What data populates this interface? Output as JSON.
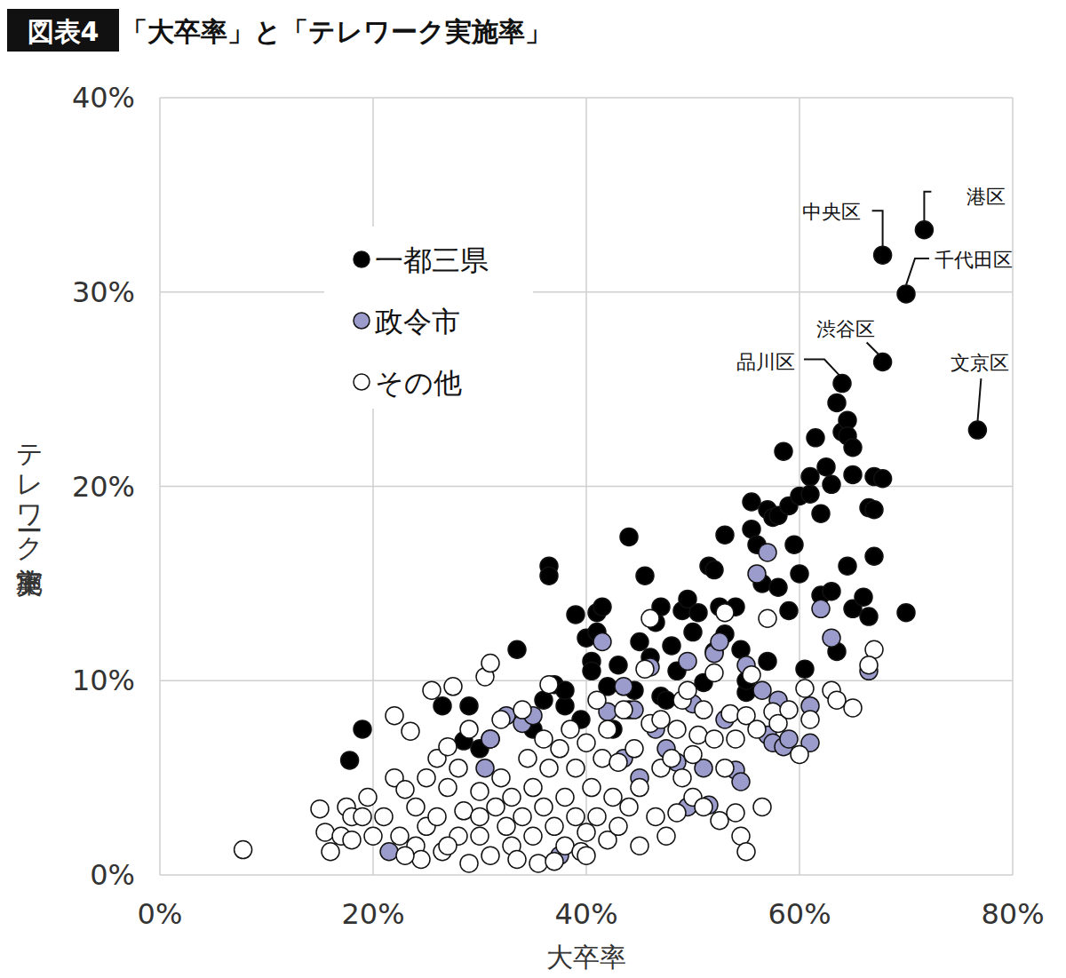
{
  "chart_data": {
    "type": "scatter",
    "figure_label": "図表4",
    "title": "「大卒率」と「テレワーク実施率」",
    "x_label": "大卒率",
    "y_label": "テレワーク実施率",
    "xlim": [
      0,
      80
    ],
    "ylim": [
      0,
      40
    ],
    "xticks": [
      {
        "value": 0,
        "label": "0%"
      },
      {
        "value": 20,
        "label": "20%"
      },
      {
        "value": 40,
        "label": "40%"
      },
      {
        "value": 60,
        "label": "60%"
      },
      {
        "value": 80,
        "label": "80%"
      }
    ],
    "yticks": [
      {
        "value": 0,
        "label": "0%"
      },
      {
        "value": 10,
        "label": "10%"
      },
      {
        "value": 20,
        "label": "20%"
      },
      {
        "value": 30,
        "label": "30%"
      },
      {
        "value": 40,
        "label": "40%"
      }
    ],
    "grid": true,
    "legend": "upper left",
    "marker": "circle",
    "series": [
      {
        "name": "一都三県",
        "color": "#000000",
        "x": [
          17.8,
          19.0,
          26.5,
          28.5,
          29,
          33.5,
          36.5,
          36.5,
          36,
          37,
          38,
          39,
          40,
          40.5,
          41,
          41.5,
          41,
          40.5,
          42,
          43,
          44,
          44.5,
          45,
          45.5,
          46,
          46.5,
          47,
          47,
          48,
          48.5,
          49,
          49.5,
          50,
          50.5,
          51,
          51.5,
          52,
          52.5,
          53,
          53,
          54,
          54.5,
          55,
          55.5,
          55.5,
          56,
          56.5,
          57,
          57.5,
          58,
          58.5,
          58,
          59,
          59,
          59.5,
          60,
          60,
          60.5,
          61,
          61,
          61.5,
          62,
          62,
          62.5,
          63,
          63,
          63.5,
          64,
          64,
          64.5,
          64.5,
          65,
          65,
          64.5,
          65,
          66,
          66.5,
          66.5,
          67,
          67,
          67,
          67.8,
          67.8,
          67.8,
          70,
          71.7,
          76.7,
          70,
          63.5,
          57,
          55,
          52,
          47.5,
          44,
          42.5,
          39.5,
          38,
          35,
          31,
          30
        ],
        "values": [
          5.9,
          7.5,
          8.7,
          6.9,
          8.7,
          11.6,
          15.9,
          15.4,
          9,
          9.8,
          8.7,
          13.4,
          12.2,
          11.0,
          13.5,
          13.8,
          12.5,
          10.5,
          9.7,
          10.8,
          17.4,
          9.5,
          12.0,
          15.4,
          11.2,
          13.0,
          13.8,
          9.2,
          11.8,
          10.5,
          13.6,
          14.2,
          12.5,
          13.5,
          9.9,
          15.9,
          15.7,
          13.8,
          17.5,
          12.4,
          13.8,
          11.6,
          9.4,
          19.2,
          17.8,
          17.0,
          15.0,
          18.8,
          18.4,
          14.8,
          21.8,
          18.5,
          19.0,
          13.6,
          17.0,
          19.5,
          15.5,
          10.6,
          20.5,
          19.6,
          22.5,
          14.4,
          18.6,
          21.0,
          20.1,
          14.6,
          24.3,
          22.8,
          25.3,
          23.4,
          22.6,
          22.0,
          20.6,
          15.9,
          13.7,
          14.3,
          13.3,
          18.9,
          18.8,
          16.4,
          20.5,
          20.4,
          26.4,
          31.9,
          29.9,
          33.2,
          22.9,
          13.5,
          11.5,
          11.0,
          10.0,
          11.5,
          9.0,
          8.5,
          7.5,
          8.0,
          9.5,
          7.5,
          7.0,
          6.5
        ]
      },
      {
        "name": "政令市",
        "color": "#9b9bcc",
        "x": [
          21.5,
          37.5,
          30.5,
          31,
          32.5,
          34,
          35,
          41.5,
          42,
          43.5,
          44.5,
          45,
          46,
          46.5,
          47.5,
          48.5,
          49.5,
          49.5,
          50,
          51,
          52,
          52.5,
          53,
          54,
          54.5,
          55,
          56,
          56.5,
          57,
          57,
          57.5,
          58,
          58.5,
          59,
          61,
          61,
          62,
          63,
          66.5,
          51.5,
          43.5
        ],
        "values": [
          1.2,
          1.0,
          5.5,
          7.0,
          8.2,
          7.8,
          8.2,
          12.0,
          8.4,
          9.7,
          8.5,
          5.0,
          10.7,
          7.5,
          6.5,
          5.8,
          11.0,
          3.5,
          8.8,
          5.5,
          11.4,
          12.0,
          8.0,
          5.4,
          4.8,
          10.8,
          15.5,
          9.5,
          16.6,
          7.2,
          6.8,
          9.0,
          6.6,
          7.0,
          8.7,
          6.8,
          13.7,
          12.2,
          10.5,
          3.6,
          6.0
        ]
      },
      {
        "name": "その他",
        "color": "#ffffff",
        "x": [
          7.8,
          15,
          15.5,
          16,
          17,
          17.5,
          18,
          18,
          19,
          19.5,
          20,
          21,
          22,
          22,
          22.5,
          23,
          23.5,
          24,
          24,
          25,
          25,
          25.5,
          26,
          26,
          26.5,
          27,
          27,
          27.5,
          28,
          28,
          28.5,
          29,
          29,
          30,
          30,
          30.5,
          31,
          31,
          31.5,
          32,
          32,
          32.5,
          33,
          33,
          34,
          34,
          34.5,
          35,
          35,
          35.5,
          36,
          36,
          36.5,
          36.5,
          37,
          37.5,
          38,
          38,
          38.5,
          39,
          39,
          39.5,
          40,
          40,
          40.5,
          41,
          41,
          41.5,
          42,
          42,
          42.5,
          43,
          43,
          43.5,
          44,
          44.5,
          45,
          45,
          45.5,
          46,
          46,
          46.5,
          47,
          47,
          47.5,
          48,
          48.5,
          48.5,
          49,
          49,
          49.5,
          50,
          50,
          50.5,
          51,
          51,
          52,
          52,
          52.5,
          53,
          53,
          53.5,
          54,
          54,
          54.5,
          55,
          55,
          55.5,
          56,
          56.5,
          57,
          57.5,
          58,
          59,
          60,
          60.5,
          61,
          63,
          63.5,
          65,
          67,
          66.5,
          24.5,
          33.5,
          37,
          40,
          27,
          30,
          23
        ],
        "values": [
          1.3,
          3.4,
          2.2,
          1.2,
          2.0,
          3.5,
          1.8,
          3.0,
          3.0,
          4.0,
          2.0,
          3.0,
          8.2,
          5.0,
          2.0,
          4.4,
          7.4,
          3.5,
          1.5,
          5.0,
          2.5,
          9.5,
          6.0,
          3.0,
          1.2,
          4.5,
          6.6,
          9.7,
          2.0,
          5.5,
          3.3,
          7.5,
          0.6,
          4.3,
          2.0,
          10.2,
          10.9,
          1.0,
          3.5,
          5.0,
          8.0,
          2.5,
          4.0,
          1.5,
          8.5,
          3.0,
          6.0,
          4.5,
          2.0,
          0.6,
          7.0,
          3.5,
          5.5,
          9.8,
          2.5,
          6.5,
          4.0,
          1.5,
          7.5,
          3.0,
          5.5,
          1.2,
          6.8,
          2.2,
          4.5,
          9.0,
          3.0,
          6.0,
          1.8,
          7.5,
          4.0,
          5.8,
          2.5,
          8.5,
          3.5,
          6.5,
          1.5,
          4.5,
          10.6,
          13.2,
          7.8,
          3.0,
          5.5,
          8.0,
          2.0,
          6.0,
          7.5,
          3.2,
          9.0,
          5.0,
          9.5,
          6.2,
          4.0,
          7.2,
          3.5,
          8.5,
          10.4,
          7.0,
          2.8,
          13.5,
          5.5,
          8.3,
          3.2,
          7.0,
          2.0,
          1.2,
          8.2,
          10.3,
          7.5,
          3.5,
          13.2,
          8.4,
          7.8,
          8.5,
          6.2,
          9.6,
          8.0,
          9.5,
          9.0,
          8.6,
          11.6,
          10.8,
          0.8,
          0.8,
          0.7,
          1.0,
          1.5,
          3.0,
          1.0
        ]
      }
    ],
    "annotations": [
      {
        "text": "港区",
        "x": 71.7,
        "y": 33.2
      },
      {
        "text": "中央区",
        "x": 67.8,
        "y": 31.9
      },
      {
        "text": "千代田区",
        "x": 70,
        "y": 29.9
      },
      {
        "text": "渋谷区",
        "x": 67.8,
        "y": 26.4
      },
      {
        "text": "品川区",
        "x": 64,
        "y": 25.3
      },
      {
        "text": "文京区",
        "x": 76.7,
        "y": 22.9
      }
    ]
  }
}
